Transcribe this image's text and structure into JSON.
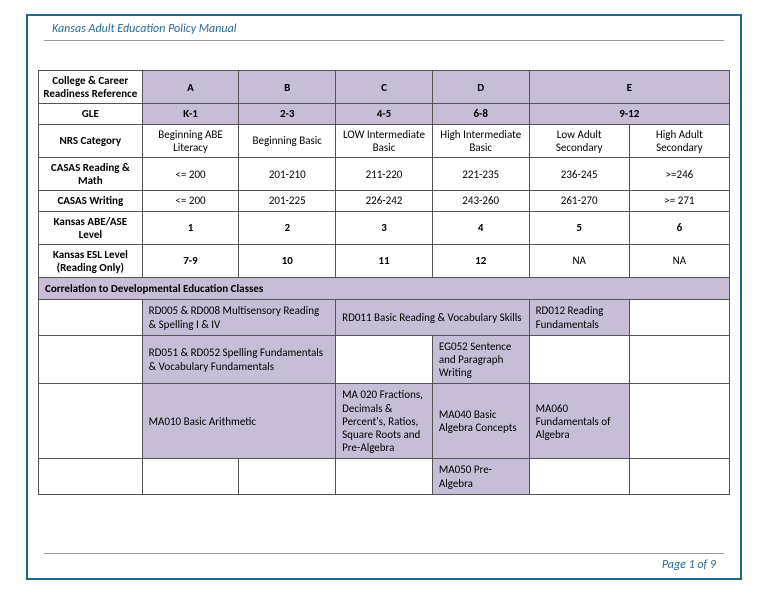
{
  "header": {
    "title": "Kansas Adult Education Policy Manual"
  },
  "footer": {
    "page": "Page 1 of 9"
  },
  "colors": {
    "border": "#1a6b8f",
    "lavender": "#c7bdd6",
    "header_text": "#2a6b9c",
    "grid": "#555555",
    "bg": "#ffffff"
  },
  "table": {
    "heading": "College & Career Readiness Reference",
    "cols": [
      "A",
      "B",
      "C",
      "D",
      "E"
    ],
    "gle_label": "GLE",
    "gle": [
      "K-1",
      "2-3",
      "4-5",
      "6-8",
      "9-12"
    ],
    "nrs_label": "NRS Category",
    "nrs": [
      "Beginning ABE Literacy",
      "Beginning Basic",
      "LOW Intermediate Basic",
      "High Intermediate Basic",
      "Low Adult Secondary",
      "High Adult Secondary"
    ],
    "casas_rm_label": "CASAS Reading & Math",
    "casas_rm": [
      "<= 200",
      "201-210",
      "211-220",
      "221-235",
      "236-245",
      ">=246"
    ],
    "casas_w_label": "CASAS Writing",
    "casas_w": [
      "<= 200",
      "201-225",
      "226-242",
      "243-260",
      "261-270",
      ">= 271"
    ],
    "ks_level_label": "Kansas ABE/ASE Level",
    "ks_level": [
      "1",
      "2",
      "3",
      "4",
      "5",
      "6"
    ],
    "ks_esl_label": "Kansas ESL Level (Reading Only)",
    "ks_esl": [
      "7-9",
      "10",
      "11",
      "12",
      "NA",
      "NA"
    ],
    "correlation_header": "Correlation to Developmental Education Classes",
    "dev": {
      "r1c12": "RD005 & RD008 Multisensory Reading & Spelling I & IV",
      "r1c34": "RD011 Basic Reading & Vocabulary Skills",
      "r1c5": "RD012 Reading Fundamentals",
      "r2c12": "RD051 & RD052 Spelling Fundamentals & Vocabulary Fundamentals",
      "r2c4": "EG052 Sentence and Paragraph Writing",
      "r3c12": "MA010 Basic Arithmetic",
      "r3c3": "MA 020 Fractions, Decimals & Percent's, Ratios, Square Roots and Pre-Algebra",
      "r3c4": "MA040 Basic Algebra Concepts",
      "r3c5": "MA060 Fundamentals of Algebra",
      "r4c4": "MA050 Pre-Algebra"
    }
  }
}
